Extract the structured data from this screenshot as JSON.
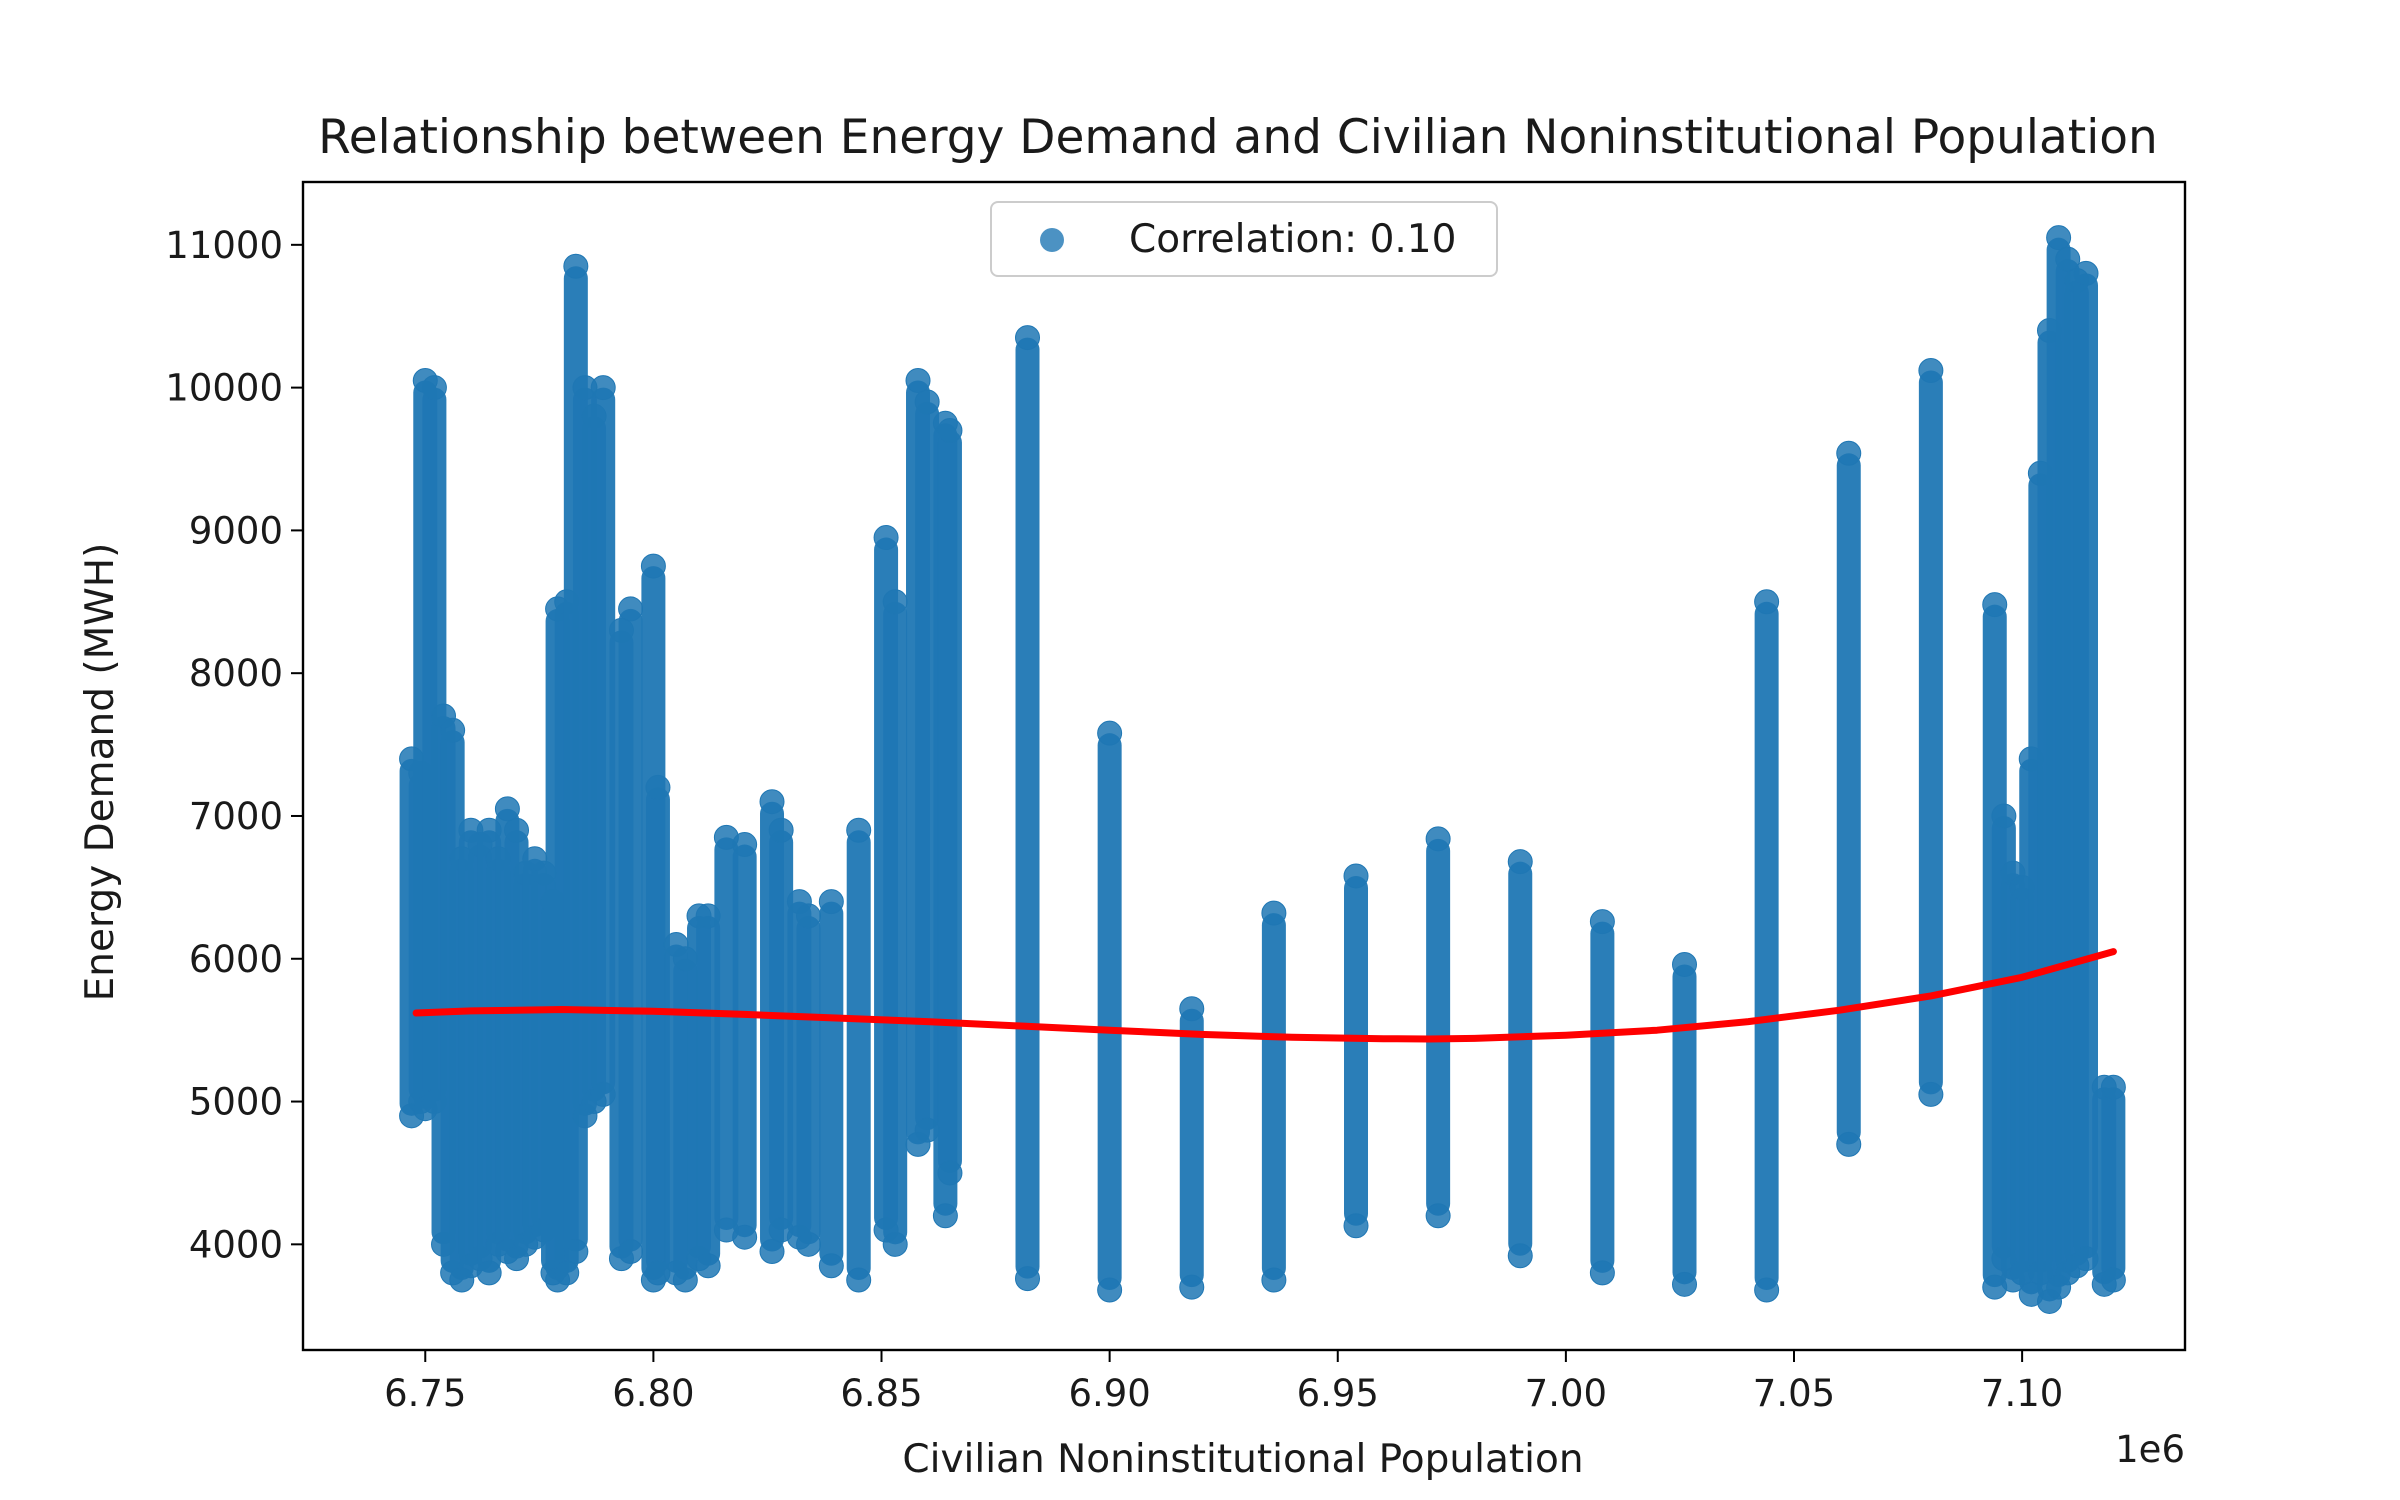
{
  "chart_data": {
    "type": "scatter",
    "title": "Relationship between Energy Demand and Civilian Noninstitutional Population",
    "xlabel": "Civilian Noninstitutional Population",
    "ylabel": "Energy Demand (MWH)",
    "x_offset_label": "1e6",
    "xlim": [
      6.7232,
      7.1357
    ],
    "ylim": [
      3260,
      11440
    ],
    "x_ticks": [
      6.75,
      6.8,
      6.85,
      6.9,
      6.95,
      7.0,
      7.05,
      7.1
    ],
    "x_tick_labels": [
      "6.75",
      "6.80",
      "6.85",
      "6.90",
      "6.95",
      "7.00",
      "7.05",
      "7.10"
    ],
    "y_ticks": [
      4000,
      5000,
      6000,
      7000,
      8000,
      9000,
      10000,
      11000
    ],
    "y_tick_labels": [
      "4000",
      "5000",
      "6000",
      "7000",
      "8000",
      "9000",
      "10000",
      "11000"
    ],
    "grid": false,
    "legend": {
      "position": "top-center",
      "entries": [
        "Correlation: 0.10"
      ]
    },
    "colors": {
      "points": "#1f77b4",
      "fit_line": "#ff0000"
    },
    "series": [
      {
        "name": "Correlation: 0.10",
        "kind": "scatter",
        "note_columns": "each column = [x (millions), y_min, y_max] of the vertical strip of points",
        "columns": [
          [
            6.747,
            4900,
            7400
          ],
          [
            6.749,
            5000,
            7300
          ],
          [
            6.75,
            4950,
            10050
          ],
          [
            6.752,
            5000,
            10000
          ],
          [
            6.754,
            4000,
            7700
          ],
          [
            6.756,
            3800,
            7600
          ],
          [
            6.758,
            3750,
            6700
          ],
          [
            6.76,
            3850,
            6900
          ],
          [
            6.762,
            3900,
            6800
          ],
          [
            6.764,
            3800,
            6900
          ],
          [
            6.766,
            4000,
            6700
          ],
          [
            6.768,
            3950,
            7050
          ],
          [
            6.77,
            3900,
            6900
          ],
          [
            6.772,
            4000,
            6600
          ],
          [
            6.774,
            4050,
            6700
          ],
          [
            6.776,
            4100,
            6600
          ],
          [
            6.778,
            3800,
            6400
          ],
          [
            6.779,
            3750,
            8450
          ],
          [
            6.781,
            3800,
            8500
          ],
          [
            6.783,
            3950,
            10850
          ],
          [
            6.785,
            4900,
            10000
          ],
          [
            6.787,
            5000,
            9800
          ],
          [
            6.789,
            5050,
            10000
          ],
          [
            6.793,
            3900,
            8300
          ],
          [
            6.795,
            3950,
            8450
          ],
          [
            6.8,
            3750,
            8750
          ],
          [
            6.801,
            3800,
            7200
          ],
          [
            6.805,
            3800,
            6100
          ],
          [
            6.807,
            3750,
            6000
          ],
          [
            6.81,
            3900,
            6300
          ],
          [
            6.812,
            3850,
            6300
          ],
          [
            6.816,
            4100,
            6850
          ],
          [
            6.82,
            4050,
            6800
          ],
          [
            6.826,
            3950,
            7100
          ],
          [
            6.828,
            4100,
            6900
          ],
          [
            6.832,
            4050,
            6400
          ],
          [
            6.834,
            4000,
            6300
          ],
          [
            6.839,
            3850,
            6400
          ],
          [
            6.845,
            3750,
            6900
          ],
          [
            6.851,
            4100,
            8950
          ],
          [
            6.853,
            4000,
            8500
          ],
          [
            6.858,
            4700,
            10050
          ],
          [
            6.86,
            4800,
            9900
          ],
          [
            6.864,
            4200,
            9750
          ],
          [
            6.865,
            4500,
            9700
          ],
          [
            6.882,
            3760,
            10350
          ],
          [
            6.9,
            3680,
            7580
          ],
          [
            6.918,
            3700,
            5650
          ],
          [
            6.936,
            3750,
            6320
          ],
          [
            6.954,
            4130,
            6580
          ],
          [
            6.972,
            4200,
            6840
          ],
          [
            6.99,
            3920,
            6680
          ],
          [
            7.008,
            3800,
            6260
          ],
          [
            7.026,
            3720,
            5960
          ],
          [
            7.044,
            3680,
            8500
          ],
          [
            7.062,
            4700,
            9540
          ],
          [
            7.08,
            5050,
            10120
          ],
          [
            7.094,
            3700,
            8480
          ],
          [
            7.096,
            3900,
            7000
          ],
          [
            7.098,
            3750,
            6600
          ],
          [
            7.1,
            3800,
            6500
          ],
          [
            7.102,
            3650,
            7400
          ],
          [
            7.104,
            3800,
            9400
          ],
          [
            7.106,
            3600,
            10400
          ],
          [
            7.108,
            3700,
            11050
          ],
          [
            7.11,
            3800,
            10900
          ],
          [
            7.112,
            3850,
            10750
          ],
          [
            7.114,
            3900,
            10800
          ],
          [
            7.118,
            3720,
            5100
          ],
          [
            7.12,
            3750,
            5100
          ]
        ]
      },
      {
        "name": "fit",
        "kind": "line",
        "x": [
          6.748,
          6.76,
          6.78,
          6.8,
          6.82,
          6.84,
          6.86,
          6.88,
          6.9,
          6.92,
          6.94,
          6.96,
          6.97,
          6.98,
          7.0,
          7.02,
          7.04,
          7.06,
          7.08,
          7.1,
          7.12
        ],
        "y": [
          5620,
          5635,
          5645,
          5632,
          5610,
          5585,
          5560,
          5530,
          5500,
          5470,
          5450,
          5440,
          5438,
          5442,
          5465,
          5500,
          5560,
          5640,
          5740,
          5870,
          6050
        ]
      }
    ]
  }
}
